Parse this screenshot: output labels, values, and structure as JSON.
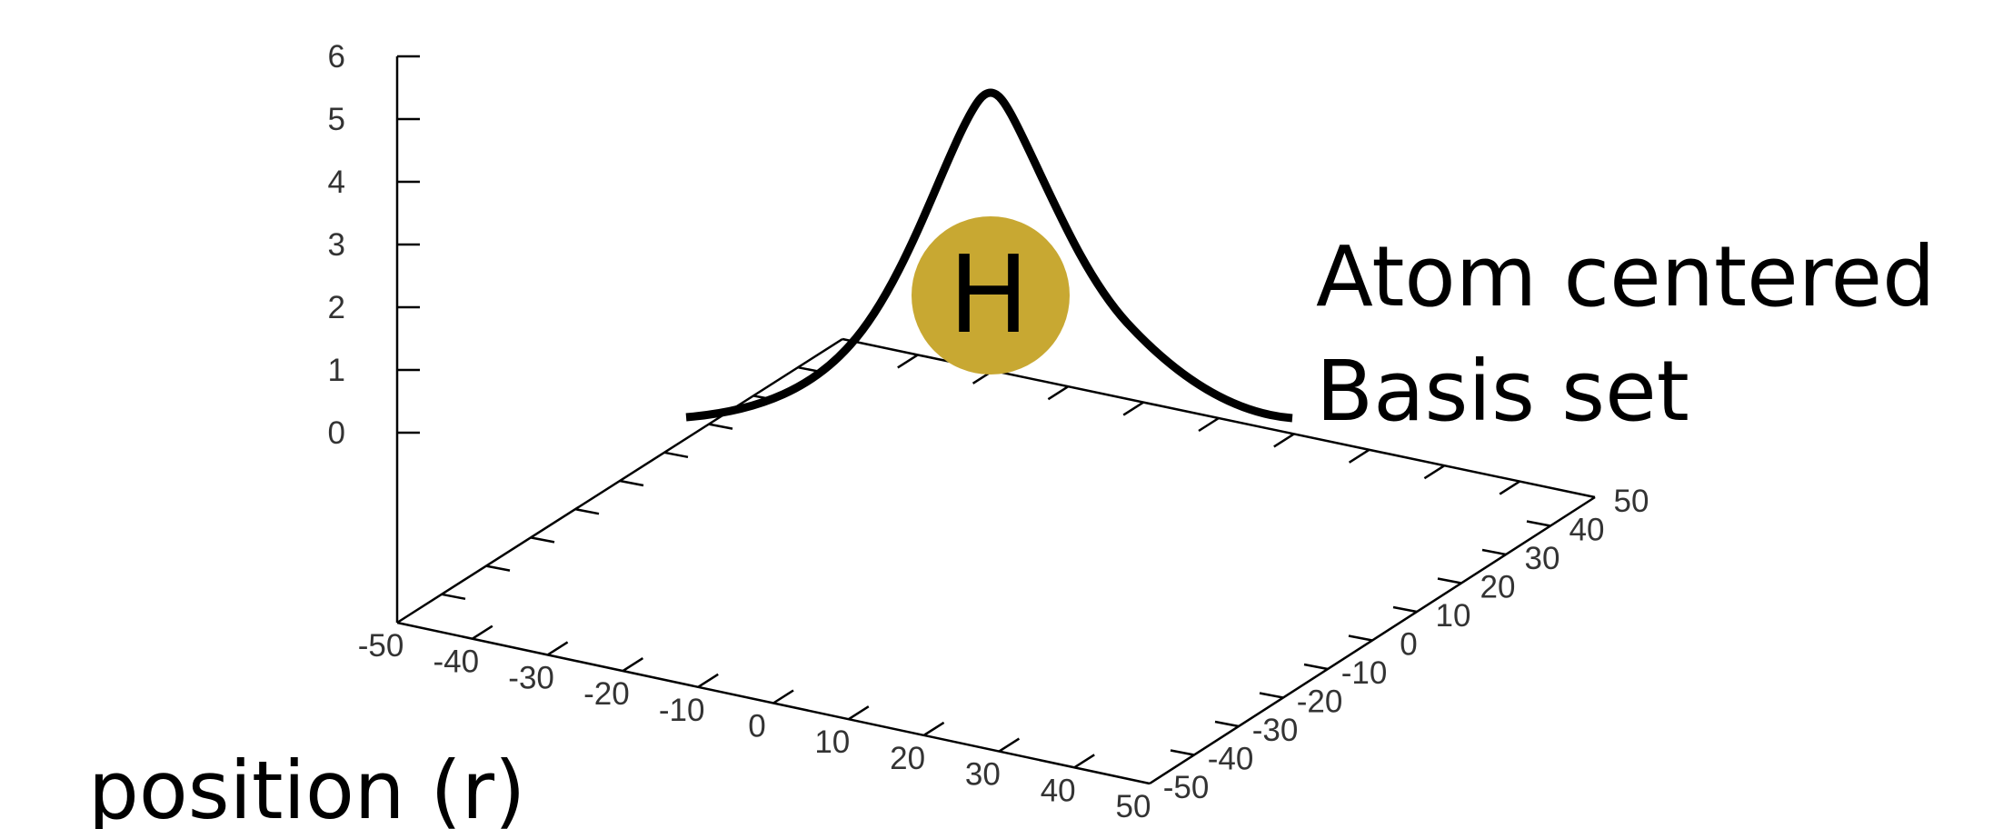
{
  "diagram": {
    "type": "3d-surface-plot-illustration",
    "z_axis": {
      "tick_labels": [
        "0",
        "1",
        "2",
        "3",
        "4",
        "5",
        "6"
      ],
      "range": [
        0,
        6
      ]
    },
    "x_axis": {
      "tick_labels": [
        "-50",
        "-40",
        "-30",
        "-20",
        "-10",
        "0",
        "10",
        "20",
        "30",
        "40",
        "50"
      ],
      "range": [
        -50,
        50
      ]
    },
    "y_axis": {
      "tick_labels": [
        "-50",
        "-40",
        "-30",
        "-20",
        "-10",
        "0",
        "10",
        "20",
        "30",
        "40",
        "50"
      ],
      "range": [
        -50,
        50
      ]
    },
    "curve": {
      "description_shape": "peaked function centered at atom",
      "peak_height": 5.4,
      "color": "#000000"
    },
    "atom": {
      "symbol": "H",
      "color": "#c8a832"
    },
    "annotation": {
      "line1": "Atom centered",
      "line2": "Basis set"
    },
    "position_label": "position (r)"
  }
}
